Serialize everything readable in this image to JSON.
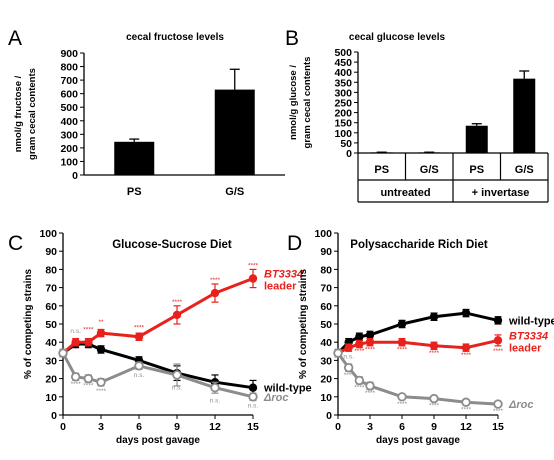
{
  "chart_data": [
    {
      "panel": "A",
      "type": "bar",
      "title": "cecal fructose levels",
      "ylabel": "nmol/g fructose / gram cecal contents",
      "ylabel_lines": [
        "nmol/g fructose /",
        "gram cecal contents"
      ],
      "categories": [
        "PS",
        "G/S"
      ],
      "values": [
        245,
        630
      ],
      "errors": [
        20,
        150
      ],
      "ylim": [
        0,
        900
      ],
      "yticks": [
        0,
        100,
        200,
        300,
        400,
        500,
        600,
        700,
        800,
        900
      ],
      "color": "#000000"
    },
    {
      "panel": "B",
      "type": "bar",
      "title": "cecal glucose levels",
      "ylabel": "nmol/g glucose / gram cecal contents",
      "ylabel_lines": [
        "nmol/g glucose /",
        "gram cecal contents"
      ],
      "categories": [
        "PS",
        "G/S",
        "PS",
        "G/S"
      ],
      "groups": [
        {
          "label": "untreated",
          "span": [
            0,
            1
          ]
        },
        {
          "label": "+ invertase",
          "span": [
            2,
            3
          ]
        }
      ],
      "values": [
        3,
        3,
        135,
        368
      ],
      "errors": [
        1,
        1,
        10,
        38
      ],
      "ylim": [
        0,
        500
      ],
      "yticks": [
        0,
        50,
        100,
        150,
        200,
        250,
        300,
        350,
        400,
        450,
        500
      ],
      "color": "#000000"
    },
    {
      "panel": "C",
      "type": "line",
      "title": "Glucose-Sucrose Diet",
      "xlabel": "days post gavage",
      "ylabel": "% of competing strains",
      "xlim": [
        0,
        15
      ],
      "ylim": [
        0,
        100
      ],
      "xticks": [
        0,
        3,
        6,
        9,
        12,
        15
      ],
      "yticks": [
        0,
        10,
        20,
        30,
        40,
        50,
        60,
        70,
        80,
        90,
        100
      ],
      "series": [
        {
          "name": "wild-type",
          "label_lines": [
            "wild-type"
          ],
          "color": "#000000",
          "marker": "filled",
          "x": [
            0,
            1,
            2,
            3,
            6,
            9,
            12,
            15
          ],
          "y": [
            34,
            39,
            39,
            36,
            30,
            23,
            18,
            15
          ],
          "err": [
            2,
            2,
            2,
            2,
            2,
            4,
            4,
            4
          ]
        },
        {
          "name": "BT3334 leader",
          "label_lines": [
            "BT3334",
            "leader"
          ],
          "label_italic_first": true,
          "color": "#e8211c",
          "marker": "filled",
          "x": [
            0,
            1,
            2,
            3,
            6,
            9,
            12,
            15
          ],
          "y": [
            34,
            40,
            40,
            45,
            43,
            55,
            67,
            75
          ],
          "err": [
            2,
            2,
            2,
            2,
            2,
            5,
            5,
            5
          ]
        },
        {
          "name": "Δroc",
          "label_lines": [
            "Δroc"
          ],
          "color": "#8c8c8c",
          "marker": "open",
          "x": [
            0,
            1,
            2,
            3,
            6,
            9,
            12,
            15
          ],
          "y": [
            34,
            21,
            20,
            18,
            27,
            22,
            15,
            10
          ],
          "err": [
            2,
            2,
            2,
            2,
            2,
            6,
            3,
            2
          ]
        }
      ],
      "annotations": [
        {
          "text": "n.s.",
          "x": 1,
          "y": 45,
          "color": "#8c8c8c"
        },
        {
          "text": "****",
          "x": 2,
          "y": 46,
          "color": "#e8211c"
        },
        {
          "text": "**",
          "x": 3,
          "y": 50,
          "color": "#e8211c"
        },
        {
          "text": "****",
          "x": 6,
          "y": 47,
          "color": "#e8211c"
        },
        {
          "text": "****",
          "x": 9,
          "y": 61,
          "color": "#e8211c"
        },
        {
          "text": "****",
          "x": 12,
          "y": 73,
          "color": "#e8211c"
        },
        {
          "text": "****",
          "x": 15,
          "y": 81,
          "color": "#e8211c"
        },
        {
          "text": "****",
          "x": 1,
          "y": 16,
          "color": "#8c8c8c"
        },
        {
          "text": "****",
          "x": 2,
          "y": 15,
          "color": "#8c8c8c"
        },
        {
          "text": "****",
          "x": 3,
          "y": 12,
          "color": "#8c8c8c"
        },
        {
          "text": "n.s.",
          "x": 6,
          "y": 21,
          "color": "#8c8c8c"
        },
        {
          "text": "n.s.",
          "x": 9,
          "y": 14,
          "color": "#8c8c8c"
        },
        {
          "text": "n.s.",
          "x": 12,
          "y": 7,
          "color": "#8c8c8c"
        },
        {
          "text": "n.s.",
          "x": 15,
          "y": 4,
          "color": "#8c8c8c"
        }
      ]
    },
    {
      "panel": "D",
      "type": "line",
      "title": "Polysaccharide Rich Diet",
      "xlabel": "days post gavage",
      "ylabel": "% of competing strains",
      "xlim": [
        0,
        15
      ],
      "ylim": [
        0,
        100
      ],
      "xticks": [
        0,
        3,
        6,
        9,
        12,
        15
      ],
      "yticks": [
        0,
        10,
        20,
        30,
        40,
        50,
        60,
        70,
        80,
        90,
        100
      ],
      "series": [
        {
          "name": "wild-type",
          "label_lines": [
            "wild-type"
          ],
          "color": "#000000",
          "marker": "filled",
          "x": [
            0,
            1,
            2,
            3,
            6,
            9,
            12,
            15
          ],
          "y": [
            34,
            40,
            43,
            44,
            50,
            54,
            56,
            52
          ],
          "err": [
            2,
            2,
            2,
            2,
            2,
            2,
            2,
            2
          ]
        },
        {
          "name": "BT3334 leader",
          "label_lines": [
            "BT3334",
            "leader"
          ],
          "label_italic_first": true,
          "color": "#e8211c",
          "marker": "filled",
          "x": [
            0,
            1,
            2,
            3,
            6,
            9,
            12,
            15
          ],
          "y": [
            34,
            37,
            39,
            40,
            40,
            38,
            37,
            41
          ],
          "err": [
            2,
            2,
            2,
            2,
            2,
            2,
            2,
            3
          ]
        },
        {
          "name": "Δroc",
          "label_lines": [
            "Δroc"
          ],
          "color": "#8c8c8c",
          "marker": "open",
          "x": [
            0,
            1,
            2,
            3,
            6,
            9,
            12,
            15
          ],
          "y": [
            34,
            26,
            19,
            16,
            10,
            9,
            7,
            6
          ],
          "err": [
            2,
            2,
            2,
            2,
            1,
            1,
            1,
            1
          ]
        }
      ],
      "annotations": [
        {
          "text": "n.s.",
          "x": 1,
          "y": 31,
          "color": "#8c8c8c"
        },
        {
          "text": "****",
          "x": 2,
          "y": 34,
          "color": "#e8211c"
        },
        {
          "text": "****",
          "x": 3,
          "y": 35,
          "color": "#e8211c"
        },
        {
          "text": "****",
          "x": 6,
          "y": 35,
          "color": "#e8211c"
        },
        {
          "text": "****",
          "x": 9,
          "y": 33,
          "color": "#e8211c"
        },
        {
          "text": "****",
          "x": 12,
          "y": 32,
          "color": "#e8211c"
        },
        {
          "text": "****",
          "x": 15,
          "y": 34,
          "color": "#e8211c"
        },
        {
          "text": "****",
          "x": 1,
          "y": 21,
          "color": "#8c8c8c"
        },
        {
          "text": "****",
          "x": 2,
          "y": 14,
          "color": "#8c8c8c"
        },
        {
          "text": "****",
          "x": 3,
          "y": 11,
          "color": "#8c8c8c"
        },
        {
          "text": "****",
          "x": 6,
          "y": 5,
          "color": "#8c8c8c"
        },
        {
          "text": "****",
          "x": 9,
          "y": 4,
          "color": "#8c8c8c"
        },
        {
          "text": "****",
          "x": 12,
          "y": 2,
          "color": "#8c8c8c"
        },
        {
          "text": "****",
          "x": 15,
          "y": 1,
          "color": "#8c8c8c"
        }
      ]
    }
  ]
}
